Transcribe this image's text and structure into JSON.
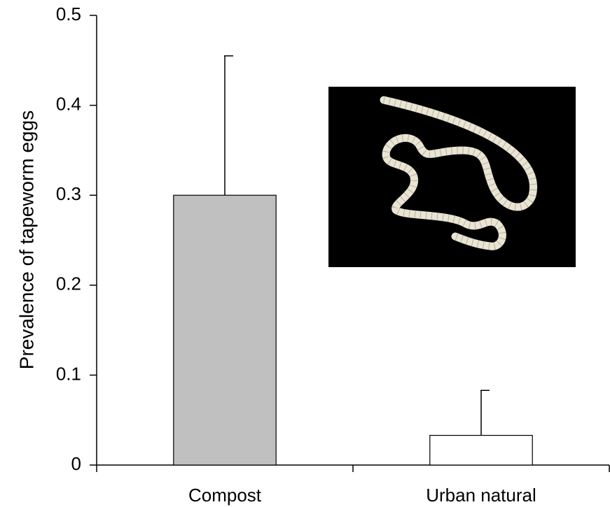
{
  "chart_data": {
    "type": "bar",
    "ylabel": "Prevalence of tapeworm eggs",
    "categories": [
      "Compost",
      "Urban natural"
    ],
    "values": [
      0.3,
      0.033
    ],
    "errors": [
      0.155,
      0.05
    ],
    "colors": [
      "#c0c0c0",
      "#ffffff"
    ],
    "ylim": [
      0,
      0.5
    ],
    "yticks": [
      0,
      0.1,
      0.2,
      0.3,
      0.4,
      0.5
    ]
  }
}
